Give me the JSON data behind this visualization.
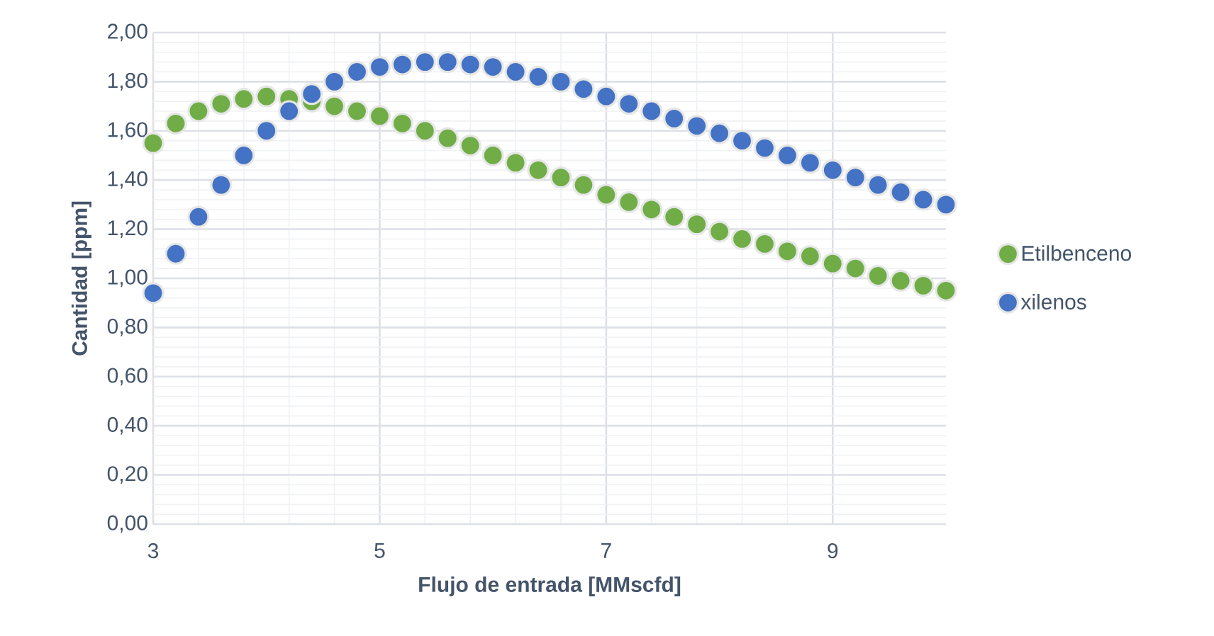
{
  "chart_data": {
    "type": "scatter",
    "xlabel": "Flujo de entrada [MMscfd]",
    "ylabel": "Cantidad [ppm]",
    "x": [
      3.0,
      3.2,
      3.4,
      3.6,
      3.8,
      4.0,
      4.2,
      4.4,
      4.6,
      4.8,
      5.0,
      5.2,
      5.4,
      5.6,
      5.8,
      6.0,
      6.2,
      6.4,
      6.6,
      6.8,
      7.0,
      7.2,
      7.4,
      7.6,
      7.8,
      8.0,
      8.2,
      8.4,
      8.6,
      8.8,
      9.0,
      9.2,
      9.4,
      9.6,
      9.8,
      10.0
    ],
    "series": [
      {
        "name": "Etilbenceno",
        "color": "#70ad47",
        "values": [
          1.55,
          1.63,
          1.68,
          1.71,
          1.73,
          1.74,
          1.73,
          1.72,
          1.7,
          1.68,
          1.66,
          1.63,
          1.6,
          1.57,
          1.54,
          1.5,
          1.47,
          1.44,
          1.41,
          1.38,
          1.34,
          1.31,
          1.28,
          1.25,
          1.22,
          1.19,
          1.16,
          1.14,
          1.11,
          1.09,
          1.06,
          1.04,
          1.01,
          0.99,
          0.97,
          0.95
        ]
      },
      {
        "name": "xilenos",
        "color": "#4472c4",
        "values": [
          0.94,
          1.1,
          1.25,
          1.38,
          1.5,
          1.6,
          1.68,
          1.75,
          1.8,
          1.84,
          1.86,
          1.87,
          1.88,
          1.88,
          1.87,
          1.86,
          1.84,
          1.82,
          1.8,
          1.77,
          1.74,
          1.71,
          1.68,
          1.65,
          1.62,
          1.59,
          1.56,
          1.53,
          1.5,
          1.47,
          1.44,
          1.41,
          1.38,
          1.35,
          1.32,
          1.3
        ]
      }
    ],
    "xlim": [
      3,
      10
    ],
    "xticks": [
      3,
      5,
      7,
      9
    ],
    "ylim": [
      0,
      2
    ],
    "yticks": [
      {
        "value": 0,
        "label": "0,00"
      },
      {
        "value": 0.2,
        "label": "0,20"
      },
      {
        "value": 0.4,
        "label": "0,40"
      },
      {
        "value": 0.6,
        "label": "0,60"
      },
      {
        "value": 0.8,
        "label": "0,80"
      },
      {
        "value": 1.0,
        "label": "1,00"
      },
      {
        "value": 1.2,
        "label": "1,20"
      },
      {
        "value": 1.4,
        "label": "1,40"
      },
      {
        "value": 1.6,
        "label": "1,60"
      },
      {
        "value": 1.8,
        "label": "1,80"
      },
      {
        "value": 2.0,
        "label": "2,00"
      }
    ],
    "grid": true,
    "legend": "right",
    "marker": "circle"
  }
}
